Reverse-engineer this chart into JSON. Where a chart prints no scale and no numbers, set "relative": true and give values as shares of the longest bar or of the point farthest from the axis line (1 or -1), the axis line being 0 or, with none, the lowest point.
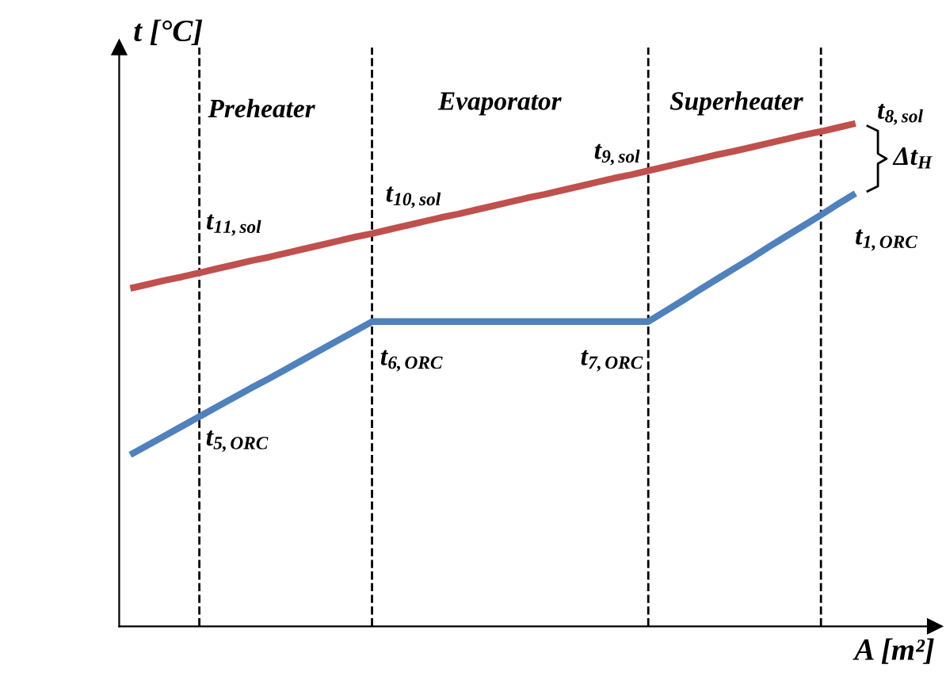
{
  "chart_data": {
    "type": "line",
    "relative": true,
    "xlabel": "A [m²]",
    "ylabel": "t [°C]",
    "marker": "none",
    "grid": "x",
    "line_style": "solid",
    "categories": [
      null,
      null,
      null,
      null,
      null,
      null,
      null,
      null,
      null,
      null,
      null,
      null,
      null,
      null,
      null,
      null,
      null,
      null,
      null,
      null,
      null,
      null,
      null,
      null,
      null,
      null,
      null,
      null,
      null,
      null,
      null,
      null,
      null,
      null,
      null,
      null,
      null,
      null,
      null,
      null,
      null,
      null,
      null
    ],
    "series": [
      {
        "color": "#c0504d",
        "values": [
          0.672,
          0.68,
          0.688,
          0.695,
          0.703,
          0.711,
          0.719,
          0.727,
          0.734,
          0.742,
          0.75,
          0.758,
          0.766,
          0.774,
          0.781,
          0.789,
          0.797,
          0.805,
          0.813,
          0.82,
          0.828,
          0.836,
          0.844,
          0.852,
          0.859,
          0.867,
          0.875,
          0.883,
          0.891,
          0.898,
          0.906,
          0.914,
          0.922,
          0.93,
          0.938,
          0.945,
          0.953,
          0.961,
          0.969,
          0.977,
          0.984,
          0.992,
          1.0
        ]
      },
      {
        "color": "#4f81bd",
        "values": [
          0.341,
          0.36,
          0.379,
          0.398,
          0.417,
          0.436,
          0.455,
          0.474,
          0.492,
          0.511,
          0.53,
          0.549,
          0.568,
          0.587,
          0.606,
          0.606,
          0.606,
          0.606,
          0.606,
          0.606,
          0.606,
          0.606,
          0.606,
          0.606,
          0.606,
          0.606,
          0.606,
          0.606,
          0.606,
          0.606,
          0.606,
          0.627,
          0.648,
          0.67,
          0.691,
          0.712,
          0.733,
          0.755,
          0.776,
          0.797,
          0.818,
          0.84,
          0.861
        ]
      }
    ],
    "annotations": [
      "Preheater",
      "Evaporator",
      "Superheater",
      "t$_{11,sol}$",
      "t$_{10,sol}$",
      "t$_{9,sol}$",
      "t$_{8,sol}$",
      "Δt$_{H}$",
      "t$_{1,ORC}$",
      "t$_{6,ORC}$",
      "t$_{7,ORC}$",
      "t$_{5,ORC}$"
    ]
  }
}
